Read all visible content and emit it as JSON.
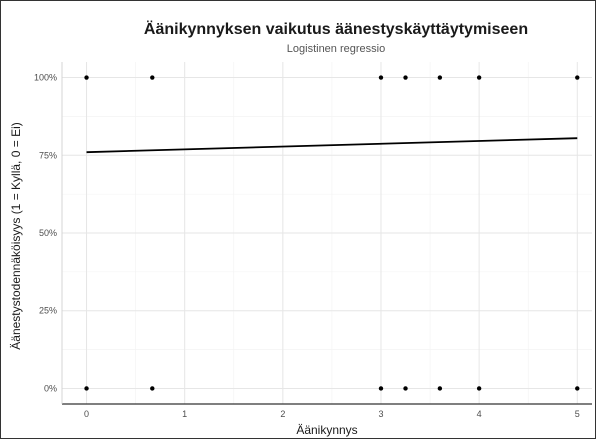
{
  "chart_data": {
    "type": "scatter",
    "title": "Äänikynnyksen vaikutus äänestyskäyttäytymiseen",
    "subtitle": "Logistinen regressio",
    "xlabel": "Äänikynnys",
    "ylabel": "Äänestystodennäköisyys (1 = Kyllä, 0 = Ei)",
    "xlim": [
      -0.25,
      5.15
    ],
    "ylim": [
      -0.05,
      1.05
    ],
    "x_ticks": [
      {
        "value": 0,
        "label": "0"
      },
      {
        "value": 1,
        "label": "1"
      },
      {
        "value": 2,
        "label": "2"
      },
      {
        "value": 3,
        "label": "3"
      },
      {
        "value": 4,
        "label": "4"
      },
      {
        "value": 5,
        "label": "5"
      }
    ],
    "y_ticks": [
      {
        "value": 0,
        "label": "0%"
      },
      {
        "value": 0.25,
        "label": "25%"
      },
      {
        "value": 0.5,
        "label": "50%"
      },
      {
        "value": 0.75,
        "label": "75%"
      },
      {
        "value": 1,
        "label": "100%"
      }
    ],
    "grid": true,
    "points": [
      {
        "x": 0,
        "y": 1
      },
      {
        "x": 0.67,
        "y": 1
      },
      {
        "x": 3,
        "y": 1
      },
      {
        "x": 3.25,
        "y": 1
      },
      {
        "x": 3.6,
        "y": 1
      },
      {
        "x": 4,
        "y": 1
      },
      {
        "x": 5,
        "y": 1
      },
      {
        "x": 0,
        "y": 0
      },
      {
        "x": 0.67,
        "y": 0
      },
      {
        "x": 3,
        "y": 0
      },
      {
        "x": 3.25,
        "y": 0
      },
      {
        "x": 3.6,
        "y": 0
      },
      {
        "x": 4,
        "y": 0
      },
      {
        "x": 5,
        "y": 0
      }
    ],
    "fit_line": {
      "x": [
        0,
        5
      ],
      "y": [
        0.76,
        0.805
      ]
    },
    "point_color": "#000000",
    "line_color": "#000000",
    "grid_color": "#e6e6e6"
  }
}
